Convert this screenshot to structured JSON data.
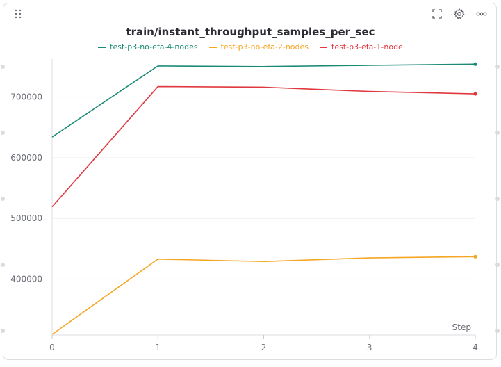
{
  "toolbar": {
    "drag_icon": "drag-grip-icon",
    "fullscreen_icon": "fullscreen-icon",
    "settings_icon": "gear-icon",
    "more_icon": "more-horizontal-icon"
  },
  "chart_data": {
    "type": "line",
    "title": "train/instant_throughput_samples_per_sec",
    "xlabel": "Step",
    "ylabel": "",
    "x": [
      0,
      1,
      2,
      3,
      4
    ],
    "xticks": [
      "0",
      "1",
      "2",
      "3",
      "4"
    ],
    "yticks": [
      {
        "value": 400000,
        "label": "400000"
      },
      {
        "value": 500000,
        "label": "500000"
      },
      {
        "value": 600000,
        "label": "600000"
      },
      {
        "value": 700000,
        "label": "700000"
      }
    ],
    "xlim": [
      0,
      4
    ],
    "ylim": [
      308000,
      760000
    ],
    "grid": true,
    "legend_position": "top-center",
    "series": [
      {
        "name": "test-p3-no-efa-4-nodes",
        "color": "#1a8a76",
        "values": [
          634000,
          751000,
          750000,
          752000,
          754000
        ]
      },
      {
        "name": "test-p3-no-efa-2-nodes",
        "color": "#f5a623",
        "values": [
          309000,
          433000,
          429000,
          435000,
          437000
        ]
      },
      {
        "name": "test-p3-efa-1-node",
        "color": "#e0383e",
        "values": [
          519000,
          717000,
          716000,
          709000,
          705000
        ]
      }
    ]
  }
}
